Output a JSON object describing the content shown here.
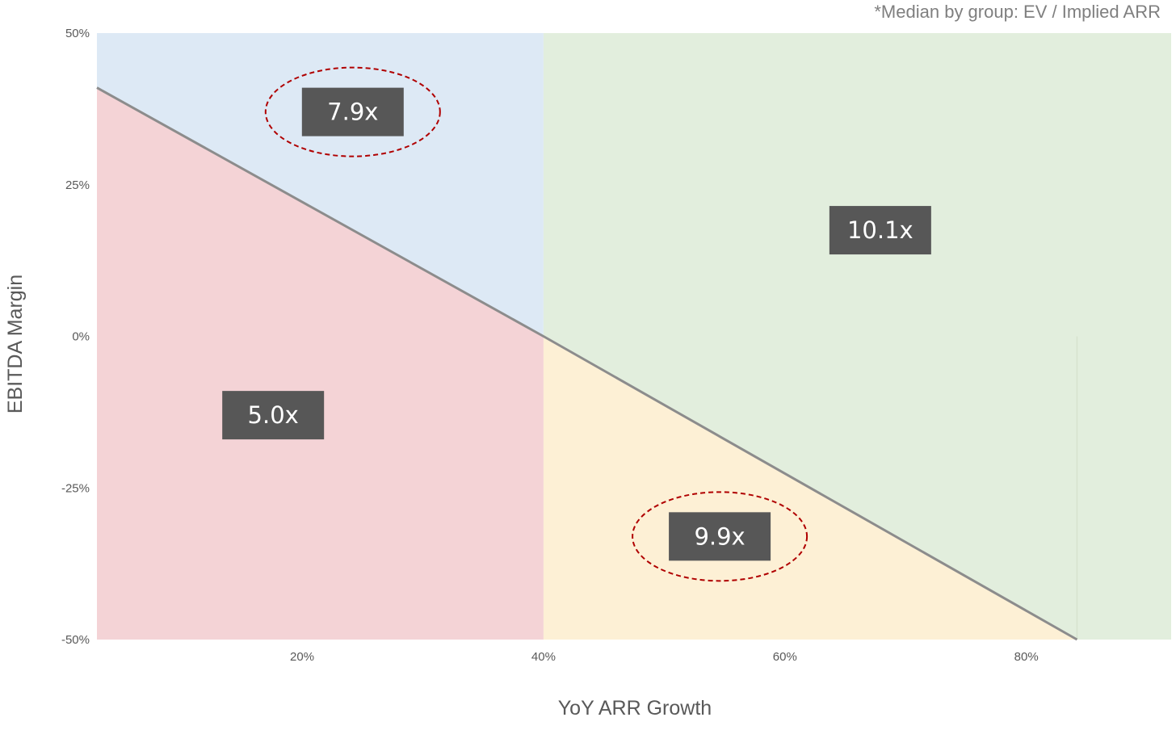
{
  "chart_data": {
    "type": "area",
    "title": "",
    "note": "*Median by group: EV / Implied ARR",
    "xlabel": "YoY ARR Growth",
    "ylabel": "EBITDA Margin",
    "xlim": [
      3,
      92
    ],
    "ylim": [
      -50,
      50
    ],
    "x_ticks": [
      {
        "value": 20,
        "label": "20%"
      },
      {
        "value": 40,
        "label": "40%"
      },
      {
        "value": 60,
        "label": "60%"
      },
      {
        "value": 80,
        "label": "80%"
      }
    ],
    "y_ticks": [
      {
        "value": 50,
        "label": "50%"
      },
      {
        "value": 25,
        "label": "25%"
      },
      {
        "value": 0,
        "label": "0%"
      },
      {
        "value": -25,
        "label": "-25%"
      },
      {
        "value": -50,
        "label": "-50%"
      }
    ],
    "divider_line": {
      "x": [
        3,
        40,
        84.2
      ],
      "y": [
        41,
        0,
        -50
      ],
      "color": "#8c8c8c"
    },
    "groups": [
      {
        "label": "7.9x",
        "value": 7.9,
        "fill": "#dde9f5",
        "label_x": 24.2,
        "label_y": 37,
        "highlighted": true
      },
      {
        "label": "5.0x",
        "value": 5.0,
        "fill": "#f4d3d6",
        "label_x": 17.6,
        "label_y": -13,
        "highlighted": false
      },
      {
        "label": "10.1x",
        "value": 10.1,
        "fill": "#e2eedd",
        "label_x": 67.9,
        "label_y": 17.5,
        "highlighted": false
      },
      {
        "label": "9.9x",
        "value": 9.9,
        "fill": "#fdf0d5",
        "label_x": 54.6,
        "label_y": -33,
        "highlighted": true
      }
    ],
    "highlight_color": "#b00000",
    "grid": false,
    "legend": "none"
  }
}
